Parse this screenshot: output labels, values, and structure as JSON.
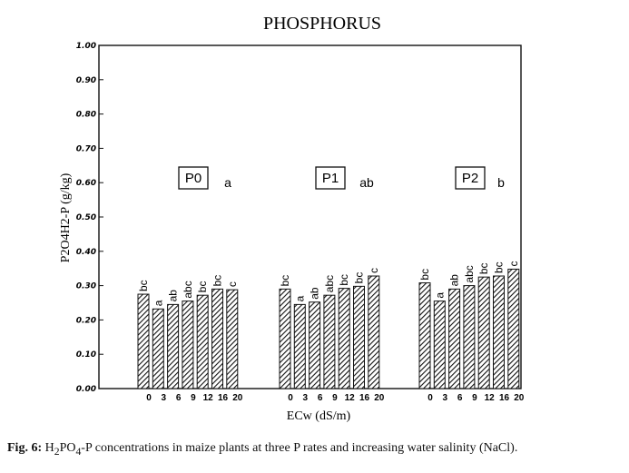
{
  "chart_data": {
    "type": "bar",
    "title": "PHOSPHORUS",
    "ylabel": "P2O4H2-P (g/kg)",
    "xlabel": "ECw (dS/m)",
    "ylim": [
      0,
      1.0
    ],
    "yticks": [
      "0.00",
      "0.10",
      "0.20",
      "0.30",
      "0.40",
      "0.50",
      "0.60",
      "0.70",
      "0.80",
      "0.90",
      "1.00"
    ],
    "categories": [
      "0",
      "3",
      "6",
      "9",
      "12",
      "16",
      "20"
    ],
    "grid": false,
    "bar_pattern": "diagonal-hatch",
    "groups": [
      {
        "name": "P0",
        "group_letter": "a",
        "values": [
          0.275,
          0.232,
          0.245,
          0.255,
          0.272,
          0.29,
          0.288
        ],
        "letters": [
          "bc",
          "a",
          "ab",
          "abc",
          "bc",
          "bc",
          "c"
        ]
      },
      {
        "name": "P1",
        "group_letter": "ab",
        "values": [
          0.29,
          0.245,
          0.252,
          0.272,
          0.292,
          0.298,
          0.328
        ],
        "letters": [
          "bc",
          "a",
          "ab",
          "abc",
          "bc",
          "bc",
          "c"
        ]
      },
      {
        "name": "P2",
        "group_letter": "b",
        "values": [
          0.308,
          0.255,
          0.29,
          0.3,
          0.325,
          0.328,
          0.348
        ],
        "letters": [
          "bc",
          "a",
          "ab",
          "abc",
          "bc",
          "bc",
          "c"
        ]
      }
    ]
  },
  "caption": {
    "prefix": "Fig. 6:",
    "text_before_sub": " H",
    "sub1": "2",
    "text_mid": "PO",
    "sub2": "4",
    "text_after": "-P concentrations in maize plants at three P rates and increasing water salinity (NaCl)."
  }
}
